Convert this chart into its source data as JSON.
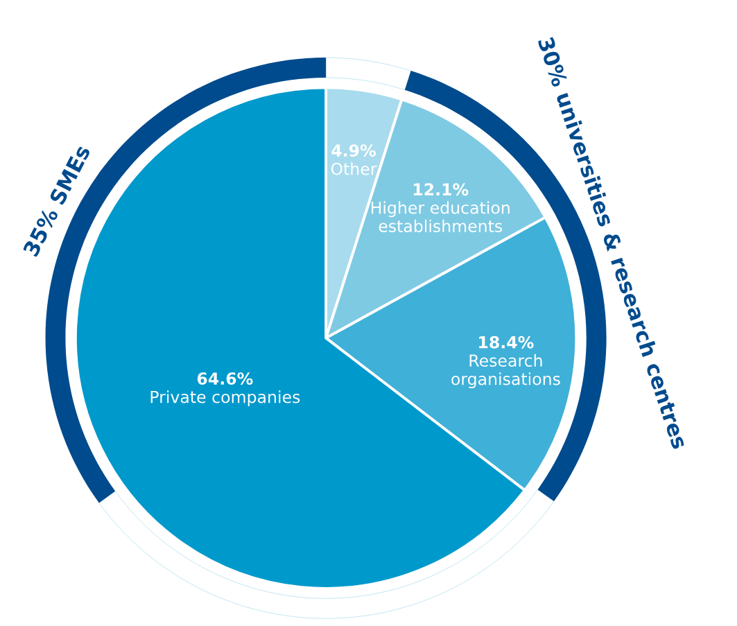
{
  "chart_data": {
    "type": "pie",
    "categories": [
      "Other",
      "Higher education\nestablishments",
      "Research\norganisations",
      "Private companies"
    ],
    "series": [
      {
        "values": [
          4.9,
          12.1,
          18.4,
          64.6
        ],
        "value_labels": [
          "4.9%",
          "12.1%",
          "18.4%",
          "64.6%"
        ],
        "colors": [
          "#a8dbed",
          "#7fcae3",
          "#3fb0d8",
          "#0099cc"
        ]
      },
      {
        "values": [
          4.9,
          30,
          30.1,
          35
        ],
        "value_labels": [
          null,
          "30% universities & research centres",
          null,
          "35% SMEs"
        ],
        "colors": [
          "#ffffff",
          "#004b8d",
          "#ffffff",
          "#004b8d"
        ]
      }
    ],
    "legend": false
  }
}
